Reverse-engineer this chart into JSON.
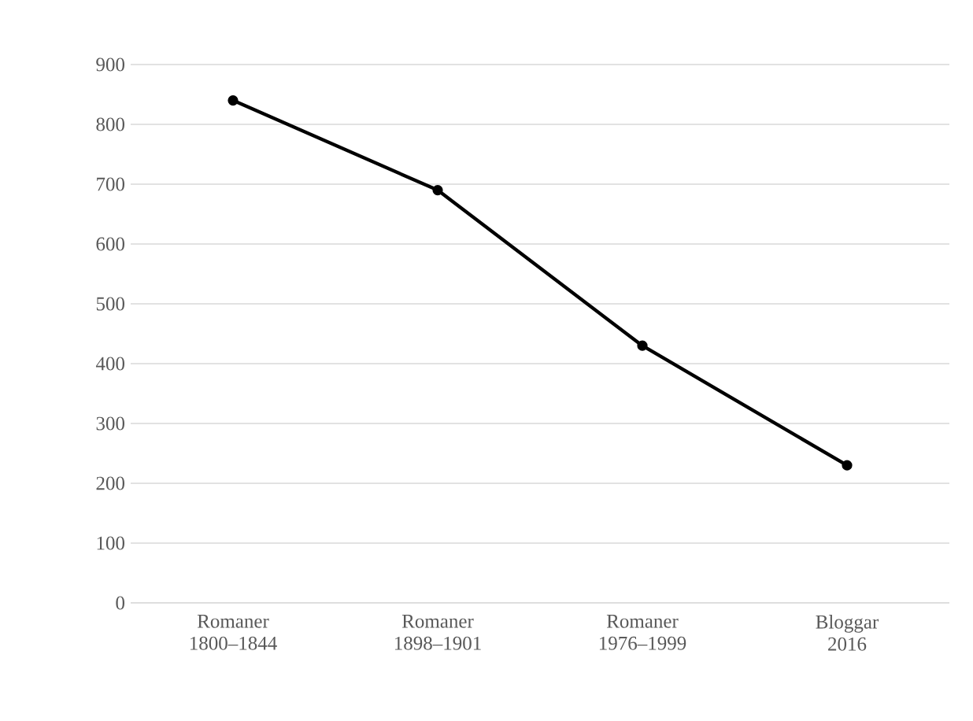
{
  "chart_data": {
    "type": "line",
    "categories": [
      "Romaner 1800–1844",
      "Romaner 1898–1901",
      "Romaner 1976–1999",
      "Bloggar 2016"
    ],
    "series": [
      {
        "color": "#000000",
        "values": [
          840,
          690,
          430,
          230
        ]
      }
    ],
    "ylim": [
      0,
      900
    ],
    "yticks": [
      0,
      100,
      200,
      300,
      400,
      500,
      600,
      700,
      800,
      900
    ],
    "grid": "y",
    "marker": "circle",
    "line_style": "solid"
  }
}
